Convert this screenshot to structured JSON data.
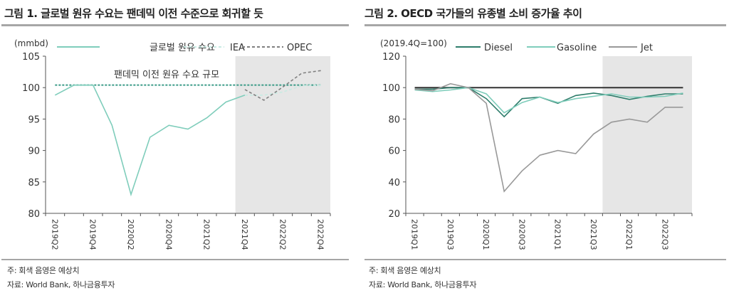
{
  "chart_data": [
    {
      "type": "line",
      "title": "그림 1. 글로벌 원유 수요는 팬데믹 이전 수준으로 회귀할 듯",
      "ylabel": "(mmbd)",
      "ylim": [
        80,
        105
      ],
      "yticks": [
        80,
        85,
        90,
        95,
        100,
        105
      ],
      "categories": [
        "2019Q2",
        "2019Q3",
        "2019Q4",
        "2020Q1",
        "2020Q2",
        "2020Q3",
        "2020Q4",
        "2021Q1",
        "2021Q2",
        "2021Q3",
        "2021Q4",
        "2022Q1",
        "2022Q2",
        "2022Q3",
        "2022Q4"
      ],
      "xtick_labels": [
        "2019Q2",
        "2019Q4",
        "2020Q2",
        "2020Q4",
        "2021Q2",
        "2021Q4",
        "2022Q2",
        "2022Q4"
      ],
      "shaded_from": "2021Q4",
      "legend_position": "top",
      "series": [
        {
          "name": "글로벌 원유 수요",
          "color": "#7fcdbb",
          "style": "solid",
          "values": [
            98.8,
            100.4,
            100.4,
            94.0,
            83.0,
            92.1,
            94.0,
            93.4,
            95.2,
            97.7,
            98.8,
            null,
            null,
            null,
            null
          ]
        },
        {
          "name": "IEA",
          "color": "#c8ebe3",
          "style": "dashed",
          "values": [
            null,
            null,
            null,
            null,
            null,
            null,
            null,
            null,
            null,
            null,
            98.8,
            98.8,
            99.3,
            100.3,
            100.4
          ]
        },
        {
          "name": "OPEC",
          "color": "#808080",
          "style": "dashed",
          "values": [
            null,
            null,
            null,
            null,
            null,
            null,
            null,
            null,
            null,
            null,
            99.7,
            98.0,
            100.1,
            102.3,
            102.7
          ]
        }
      ],
      "reference_line": {
        "label": "팬데믹 이전 원유 수요 규모",
        "value": 100.4,
        "color": "#3a9a86"
      },
      "note": "주: 회색 음영은 예상치",
      "source": "자료: World Bank, 하나금융투자"
    },
    {
      "type": "line",
      "title": "그림 2. OECD 국가들의 유종별 소비 증가율 추이",
      "ylabel": "(2019.4Q=100)",
      "ylim": [
        20,
        120
      ],
      "yticks": [
        20,
        40,
        60,
        80,
        100,
        120
      ],
      "categories": [
        "2019Q1",
        "2019Q2",
        "2019Q3",
        "2019Q4",
        "2020Q1",
        "2020Q2",
        "2020Q3",
        "2020Q4",
        "2021Q1",
        "2021Q2",
        "2021Q3",
        "2021Q4",
        "2022Q1",
        "2022Q2",
        "2022Q3",
        "2022Q4"
      ],
      "xtick_labels": [
        "2019Q1",
        "2019Q3",
        "2020Q1",
        "2020Q3",
        "2021Q1",
        "2021Q3",
        "2022Q1",
        "2022Q3"
      ],
      "shaded_from": "2021Q4",
      "legend_position": "top",
      "series": [
        {
          "name": "Diesel",
          "color": "#2e7d6b",
          "style": "solid",
          "values": [
            99,
            99,
            100,
            100,
            93,
            81.5,
            93,
            94,
            90,
            95,
            96.5,
            95,
            92.5,
            94.5,
            96,
            96
          ]
        },
        {
          "name": "Gasoline",
          "color": "#7fcdbb",
          "style": "solid",
          "values": [
            98.5,
            97.5,
            98.5,
            100,
            96,
            84,
            90.5,
            94,
            90.5,
            93,
            94.5,
            96,
            94,
            94,
            94.5,
            96.5
          ]
        },
        {
          "name": "Jet",
          "color": "#999999",
          "style": "solid",
          "values": [
            99,
            98,
            102.5,
            100,
            90,
            34,
            47,
            57,
            60,
            58,
            70.5,
            78,
            80,
            78,
            87.5,
            87.5
          ]
        }
      ],
      "reference_line": {
        "value": 100,
        "color": "#333333"
      },
      "note": "주: 회색 음영은 예상치",
      "source": "자료: World Bank, 하나금융투자"
    }
  ]
}
